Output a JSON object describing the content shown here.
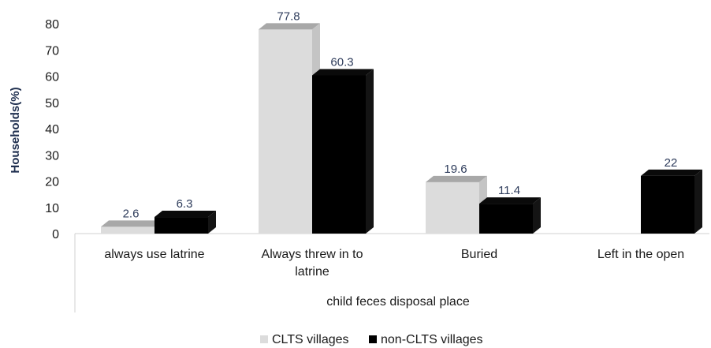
{
  "chart_data": {
    "type": "bar",
    "title": "",
    "xlabel": "child feces disposal place",
    "ylabel": "Households(%)",
    "ylim": [
      0,
      80
    ],
    "yticks": [
      0,
      10,
      20,
      30,
      40,
      50,
      60,
      70,
      80
    ],
    "categories": [
      "always use latrine",
      "Always threw in to latrine",
      "Buried",
      "Left in the open"
    ],
    "category_lines": [
      [
        "always use latrine"
      ],
      [
        "Always threw in to",
        "latrine"
      ],
      [
        "Buried"
      ],
      [
        "Left in the open"
      ]
    ],
    "series": [
      {
        "name": "CLTS villages",
        "values": [
          2.6,
          77.8,
          19.6,
          null
        ],
        "labels": [
          "2.6",
          "77.8",
          "19.6",
          ""
        ],
        "color": "#dcdcdc",
        "side_color": "#c4c4c4",
        "top_color": "#a8a8a8"
      },
      {
        "name": "non-CLTS villages",
        "values": [
          6.3,
          60.3,
          11.4,
          22
        ],
        "labels": [
          "6.3",
          "60.3",
          "11.4",
          "22"
        ],
        "color": "#000000",
        "side_color": "#141414",
        "top_color": "#0a0a0a"
      }
    ],
    "legend_position": "bottom",
    "grid": false,
    "style": "3d-column"
  }
}
